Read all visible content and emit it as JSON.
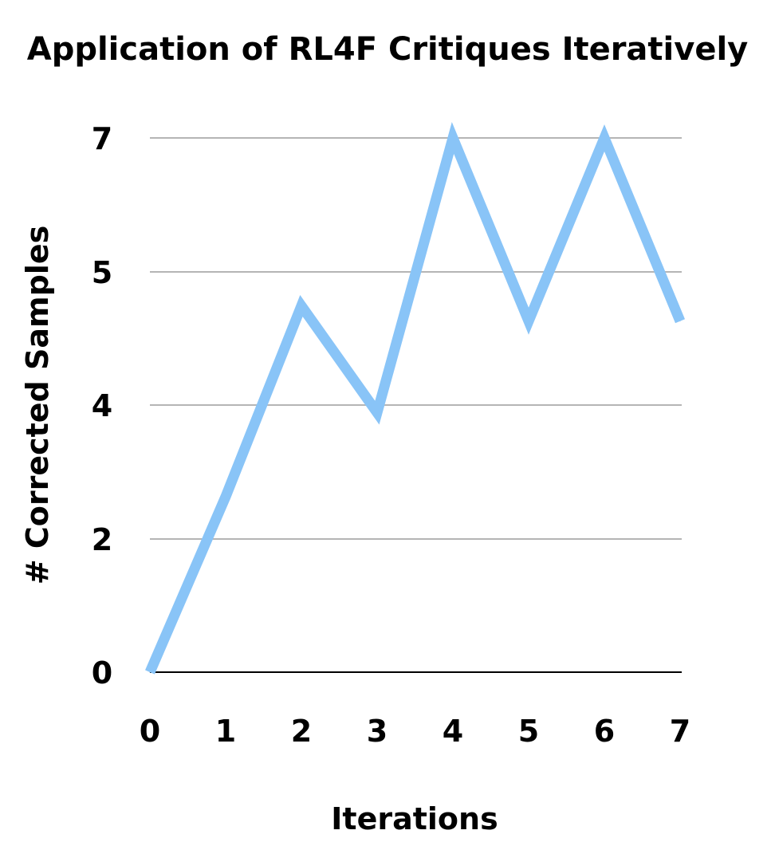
{
  "chart_data": {
    "type": "line",
    "title": "Application of RL4F Critiques Iteratively",
    "xlabel": "Iterations",
    "ylabel": "# Corrected Samples",
    "x": [
      0,
      1,
      2,
      3,
      4,
      5,
      6,
      7
    ],
    "x_tick_labels": [
      "0",
      "1",
      "2",
      "3",
      "4",
      "5",
      "6",
      "7"
    ],
    "y_tick_labels": [
      "0",
      "2",
      "4",
      "5",
      "7"
    ],
    "series": [
      {
        "values": [
          0,
          2.3,
          4.8,
          3.4,
          7,
          4.6,
          7,
          4.6
        ],
        "color": "#89c4f7"
      }
    ],
    "grid": true
  }
}
